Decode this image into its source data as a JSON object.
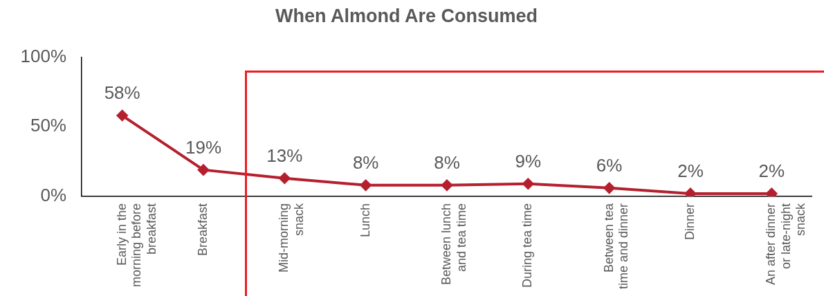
{
  "chart_data": {
    "type": "line",
    "title": "When Almond Are Consumed",
    "categories": [
      "Early in the morning before breakfast",
      "Breakfast",
      "Mid-morning snack",
      "Lunch",
      "Between lunch and tea time",
      "During tea time",
      "Between tea time and dinner",
      "Dinner",
      "An after dinner or late-night snack"
    ],
    "values": [
      58,
      19,
      13,
      8,
      8,
      9,
      6,
      2,
      2
    ],
    "value_labels": [
      "58%",
      "19%",
      "13%",
      "8%",
      "8%",
      "9%",
      "6%",
      "2%",
      "2%"
    ],
    "color": "#b5202e",
    "marker": "diamond",
    "ylim": [
      0,
      100
    ],
    "yticks": [
      {
        "value": 0,
        "label": "0%"
      },
      {
        "value": 50,
        "label": "50%"
      },
      {
        "value": 100,
        "label": "100%"
      }
    ],
    "grid": false,
    "legend": false
  }
}
